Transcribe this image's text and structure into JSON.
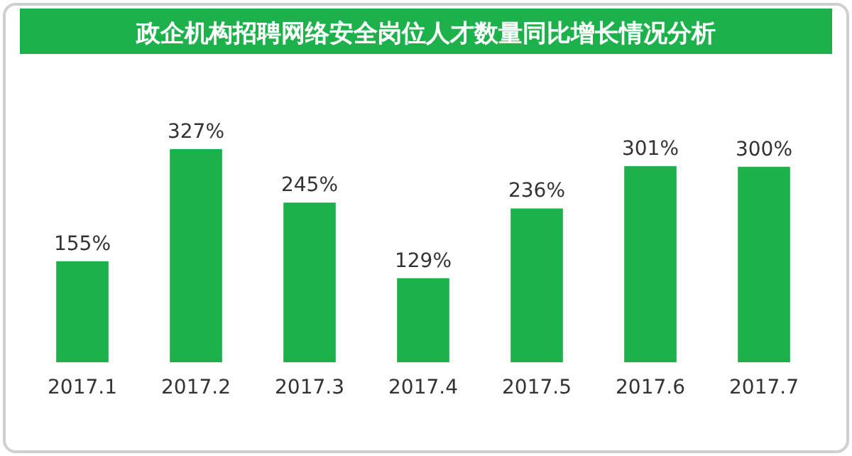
{
  "chart_data": {
    "type": "bar",
    "title": "政企机构招聘网络安全岗位人才数量同比增长情况分析",
    "categories": [
      "2017.1",
      "2017.2",
      "2017.3",
      "2017.4",
      "2017.5",
      "2017.6",
      "2017.7"
    ],
    "values": [
      155,
      327,
      245,
      129,
      236,
      301,
      300
    ],
    "value_labels": [
      "155%",
      "327%",
      "245%",
      "129%",
      "236%",
      "301%",
      "300%"
    ],
    "color": "#1db14b"
  }
}
